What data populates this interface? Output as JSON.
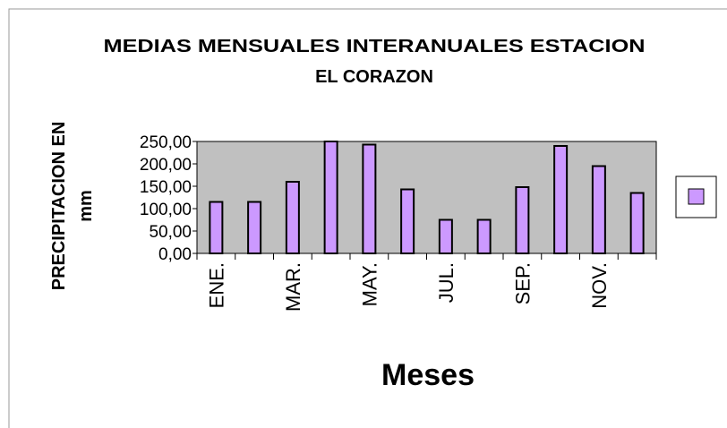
{
  "chart_data": {
    "type": "bar",
    "title_lines": [
      "MEDIAS MENSUALES INTERANUALES ESTACION",
      "EL CORAZON"
    ],
    "ylabel_lines": [
      "PRECIPITACION EN",
      "mm"
    ],
    "xlabel": "Meses",
    "categories": [
      "ENE.",
      null,
      "MAR.",
      null,
      "MAY.",
      null,
      "JUL.",
      null,
      "SEP.",
      null,
      "NOV.",
      null
    ],
    "values": [
      115,
      115,
      160,
      250,
      243,
      143,
      75,
      75,
      148,
      240,
      195,
      135
    ],
    "color": "#cc99ff",
    "ylim": [
      0,
      250
    ],
    "yticks": [
      {
        "value": 0,
        "label": "0,00"
      },
      {
        "value": 50,
        "label": "50,00"
      },
      {
        "value": 100,
        "label": "100,00"
      },
      {
        "value": 150,
        "label": "150,00"
      },
      {
        "value": 200,
        "label": "200,00"
      },
      {
        "value": 250,
        "label": "250,00"
      }
    ],
    "plot_background": "#c0c0c0"
  }
}
